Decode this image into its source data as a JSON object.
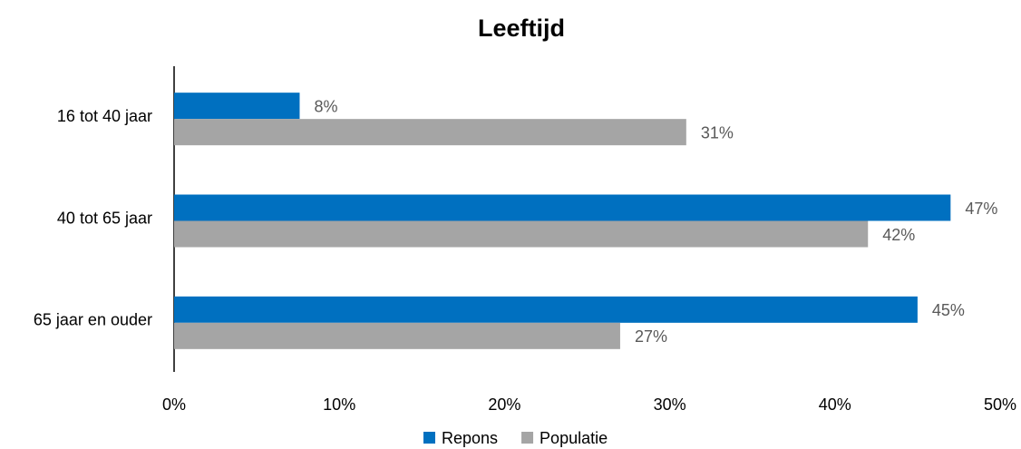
{
  "chart_data": {
    "type": "hbar",
    "title": "Leeftijd",
    "categories": [
      "16 tot 40 jaar",
      "40 tot 65 jaar",
      "65 jaar en ouder"
    ],
    "series": [
      {
        "name": "Repons",
        "color": "#0070c0",
        "values": [
          7.6,
          47,
          45
        ],
        "value_labels": [
          "8%",
          "47%",
          "45%"
        ]
      },
      {
        "name": "Populatie",
        "color": "#a5a5a5",
        "values": [
          31,
          42,
          27
        ],
        "value_labels": [
          "31%",
          "42%",
          "27%"
        ]
      }
    ],
    "xlim": [
      0,
      50
    ],
    "xticks": [
      {
        "value": 0,
        "label": "0%"
      },
      {
        "value": 10,
        "label": "10%"
      },
      {
        "value": 20,
        "label": "20%"
      },
      {
        "value": 30,
        "label": "30%"
      },
      {
        "value": 40,
        "label": "40%"
      },
      {
        "value": 50,
        "label": "50%"
      }
    ],
    "legend": "bottom"
  }
}
